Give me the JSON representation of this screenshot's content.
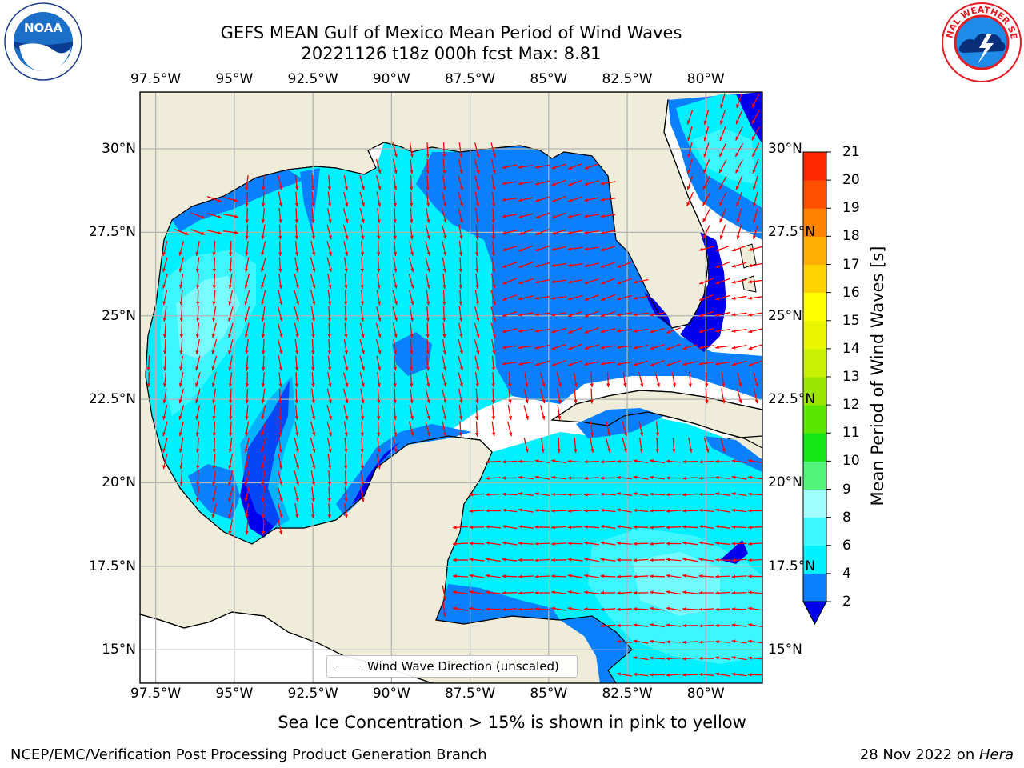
{
  "title_line1": "GEFS MEAN Gulf of Mexico Mean Period of Wind Waves",
  "title_line2": "20221126 t18z 000h fcst   Max: 8.81",
  "map": {
    "lon_labels_top": [
      "97.5°W",
      "95°W",
      "92.5°W",
      "90°W",
      "87.5°W",
      "85°W",
      "82.5°W",
      "80°W"
    ],
    "lon_labels_bottom": [
      "97.5°W",
      "95°W",
      "92.5°W",
      "90°W",
      "87.5°W",
      "85°W",
      "82.5°W",
      "80°W"
    ],
    "lat_labels_left": [
      "30°N",
      "27.5°N",
      "25°N",
      "22.5°N",
      "20°N",
      "17.5°N",
      "15°N"
    ],
    "lat_labels_right": [
      "30°N",
      "27.5°N",
      "25°N",
      "22.5°N",
      "20°N",
      "17.5°N",
      "15°N"
    ],
    "lon_values": [
      -97.5,
      -95,
      -92.5,
      -90,
      -87.5,
      -85,
      -82.5,
      -80
    ],
    "lat_values": [
      30,
      27.5,
      25,
      22.5,
      20,
      17.5,
      15
    ],
    "extent": {
      "lon_min": -98,
      "lon_max": -78.2,
      "lat_min": 14,
      "lat_max": 31.7
    },
    "land_color": "#efedd9",
    "grid_color": "#b3b3b3",
    "arrow_color": "#ff0000"
  },
  "legend": {
    "label": "Wind Wave Direction (unscaled)"
  },
  "colorbar": {
    "label": "Mean Period of Wind Waves [s]",
    "ticks": [
      "2",
      "4",
      "6",
      "8",
      "9",
      "10",
      "11",
      "12",
      "13",
      "14",
      "15",
      "16",
      "17",
      "18",
      "19",
      "20",
      "21"
    ],
    "under_color": "#0000ee",
    "colors": [
      "#0a80ff",
      "#00f0ff",
      "#3cf7ff",
      "#a0ffff",
      "#52f57a",
      "#14e614",
      "#5ae600",
      "#9be600",
      "#c8f000",
      "#ebf500",
      "#ffff00",
      "#ffd200",
      "#ffad00",
      "#ff8200",
      "#ff5000",
      "#ff2800"
    ]
  },
  "ice_note": "Sea Ice Concentration > 15% is shown in pink to yellow",
  "footer_left": "NCEP/EMC/Verification Post Processing Product Generation Branch",
  "footer_right_prefix": "28 Nov 2022 on ",
  "footer_right_host": "Hera"
}
